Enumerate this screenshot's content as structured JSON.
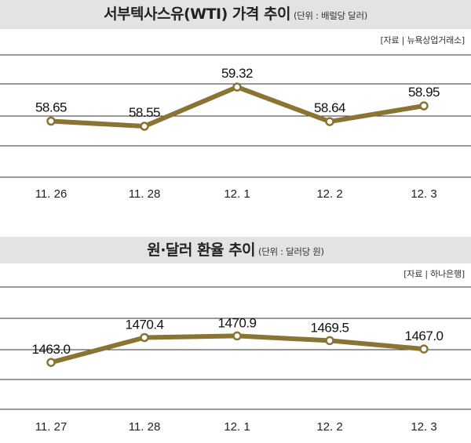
{
  "charts": [
    {
      "title": "서부텍사스유(WTI) 가격 추이",
      "unit": "(단위 : 배럴당 달러)",
      "source": "[자료 | 뉴욕상업거래소]"
    },
    {
      "title": "원·달러 환율 추이",
      "unit": "(단위 : 달러당 원)",
      "source": "[자료 | 하나은행]"
    }
  ],
  "chart_data": [
    {
      "type": "line",
      "title": "서부텍사스유(WTI) 가격 추이",
      "categories": [
        "11. 26",
        "11. 28",
        "12. 1",
        "12. 2",
        "12. 3"
      ],
      "values": [
        58.65,
        58.55,
        59.32,
        58.64,
        58.95
      ],
      "labels": [
        "58.65",
        "58.55",
        "59.32",
        "58.64",
        "58.95"
      ],
      "ylim": [
        57.55,
        59.95
      ],
      "grid": true,
      "line_color": "#8a7434"
    },
    {
      "type": "line",
      "title": "원·달러 환율 추이",
      "categories": [
        "11. 27",
        "11. 28",
        "12. 1",
        "12. 2",
        "12. 3"
      ],
      "values": [
        1463.0,
        1470.4,
        1470.9,
        1469.5,
        1467.0
      ],
      "labels": [
        "1463.0",
        "1470.4",
        "1470.9",
        "1469.5",
        "1467.0"
      ],
      "ylim": [
        1449.0,
        1485.5
      ],
      "grid": true,
      "line_color": "#8a7434"
    }
  ]
}
